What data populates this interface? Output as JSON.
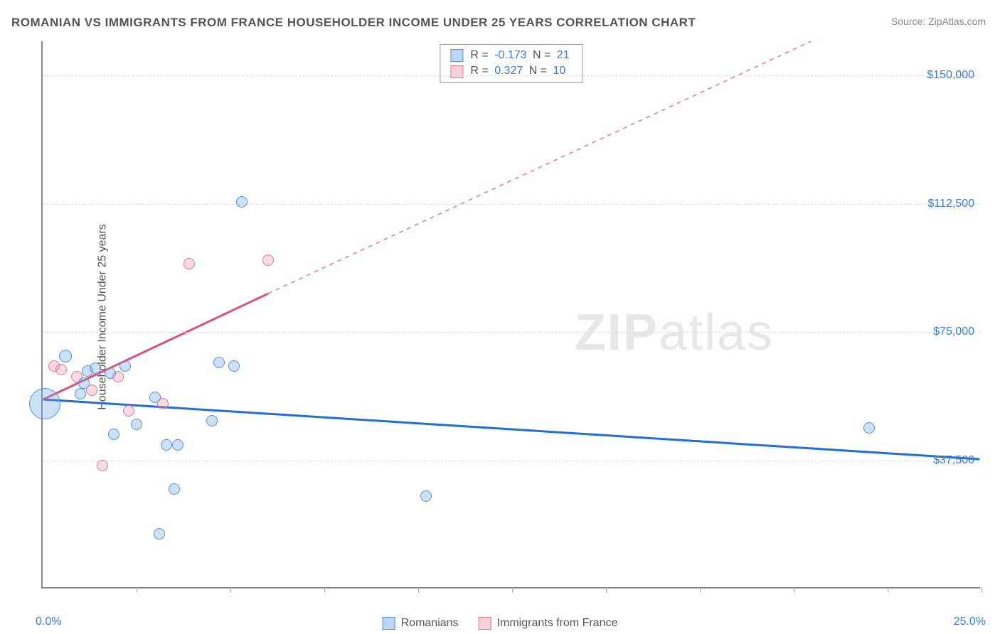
{
  "title": "ROMANIAN VS IMMIGRANTS FROM FRANCE HOUSEHOLDER INCOME UNDER 25 YEARS CORRELATION CHART",
  "source_prefix": "Source: ",
  "source_name": "ZipAtlas.com",
  "y_axis_label": "Householder Income Under 25 years",
  "watermark_bold": "ZIP",
  "watermark_light": "atlas",
  "chart": {
    "type": "scatter",
    "xlim": [
      0,
      25
    ],
    "ylim": [
      0,
      160000
    ],
    "x_tick_positions": [
      2.5,
      5,
      7.5,
      10,
      12.5,
      15,
      17.5,
      20,
      22.5,
      25
    ],
    "x_label_min": "0.0%",
    "x_label_max": "25.0%",
    "y_gridlines": [
      {
        "value": 37500,
        "label": "$37,500"
      },
      {
        "value": 75000,
        "label": "$75,000"
      },
      {
        "value": 112500,
        "label": "$112,500"
      },
      {
        "value": 150000,
        "label": "$150,000"
      }
    ],
    "background_color": "#ffffff",
    "grid_color": "#dddddd",
    "axis_color": "#888888",
    "tick_label_color": "#3b7dd8",
    "title_color": "#555555",
    "title_fontsize": 17,
    "label_fontsize": 16
  },
  "series": {
    "blue": {
      "label": "Romanians",
      "color_fill": "rgba(110,165,230,0.35)",
      "color_stroke": "#5a93d6",
      "R": "-0.173",
      "N": "21",
      "trend": {
        "x1": 0,
        "y1": 55000,
        "x2": 25,
        "y2": 37500,
        "stroke": "#1f6fd4",
        "width": 3,
        "dash": "none"
      },
      "points": [
        {
          "x": 0.05,
          "y": 54000,
          "r": 22
        },
        {
          "x": 0.6,
          "y": 68000,
          "r": 9
        },
        {
          "x": 1.0,
          "y": 57000,
          "r": 8
        },
        {
          "x": 1.1,
          "y": 60000,
          "r": 8
        },
        {
          "x": 1.2,
          "y": 63500,
          "r": 8
        },
        {
          "x": 1.4,
          "y": 64500,
          "r": 8
        },
        {
          "x": 1.8,
          "y": 63000,
          "r": 8
        },
        {
          "x": 1.9,
          "y": 45000,
          "r": 8
        },
        {
          "x": 2.2,
          "y": 65000,
          "r": 8
        },
        {
          "x": 2.5,
          "y": 48000,
          "r": 8
        },
        {
          "x": 3.0,
          "y": 56000,
          "r": 8
        },
        {
          "x": 3.1,
          "y": 16000,
          "r": 8
        },
        {
          "x": 3.3,
          "y": 42000,
          "r": 8
        },
        {
          "x": 3.5,
          "y": 29000,
          "r": 8
        },
        {
          "x": 3.6,
          "y": 42000,
          "r": 8
        },
        {
          "x": 4.5,
          "y": 49000,
          "r": 8
        },
        {
          "x": 4.7,
          "y": 66000,
          "r": 8
        },
        {
          "x": 5.1,
          "y": 65000,
          "r": 8
        },
        {
          "x": 5.3,
          "y": 113000,
          "r": 8
        },
        {
          "x": 10.2,
          "y": 27000,
          "r": 8
        },
        {
          "x": 22.0,
          "y": 47000,
          "r": 8
        }
      ]
    },
    "pink": {
      "label": "Immigrants from France",
      "color_fill": "rgba(240,150,170,0.35)",
      "color_stroke": "#e27a96",
      "R": "0.327",
      "N": "10",
      "trend_solid": {
        "x1": 0,
        "y1": 55000,
        "x2": 6.0,
        "y2": 86000,
        "stroke": "#e04f78",
        "width": 3
      },
      "trend_dashed": {
        "x1": 6.0,
        "y1": 86000,
        "x2": 20.5,
        "y2": 160000,
        "stroke": "#e27a96",
        "width": 1.5
      },
      "points": [
        {
          "x": 0.3,
          "y": 65000,
          "r": 8
        },
        {
          "x": 0.5,
          "y": 64000,
          "r": 8
        },
        {
          "x": 0.9,
          "y": 62000,
          "r": 8
        },
        {
          "x": 1.3,
          "y": 58000,
          "r": 8
        },
        {
          "x": 1.6,
          "y": 36000,
          "r": 8
        },
        {
          "x": 2.0,
          "y": 62000,
          "r": 8
        },
        {
          "x": 2.3,
          "y": 52000,
          "r": 8
        },
        {
          "x": 3.2,
          "y": 54000,
          "r": 8
        },
        {
          "x": 3.9,
          "y": 95000,
          "r": 8
        },
        {
          "x": 6.0,
          "y": 96000,
          "r": 8
        }
      ]
    }
  },
  "stats_box": {
    "row1_prefix": "R = ",
    "row1_mid": "   N = ",
    "row2_prefix": "R = ",
    "row2_mid": "   N = "
  }
}
